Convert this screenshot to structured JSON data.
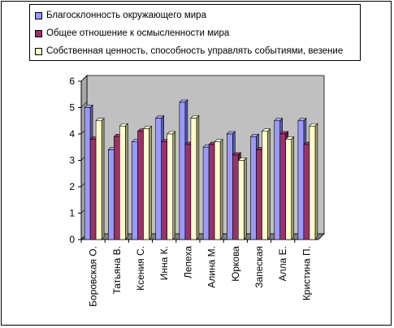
{
  "chart_data": {
    "type": "bar",
    "categories": [
      "Боровская О.",
      "Татьяна В.",
      "Ксения С.",
      "Инна К.",
      "Лепеха",
      "Алина М.",
      "Юркова",
      "Запеская",
      "Алла Е.",
      "Кристина П."
    ],
    "series": [
      {
        "name": "Благосклонность окружающего мира",
        "color": "#9999ff",
        "values": [
          5.0,
          3.4,
          3.7,
          4.6,
          5.2,
          3.5,
          4.0,
          3.9,
          4.5,
          4.5
        ]
      },
      {
        "name": "Общее отношение к осмысленности мира",
        "color": "#993366",
        "values": [
          3.8,
          3.9,
          4.1,
          3.7,
          3.6,
          3.6,
          3.2,
          3.4,
          4.0,
          3.6
        ]
      },
      {
        "name": "Собственная ценность, способность управлять событиями, везение",
        "color": "#ffffcc",
        "values": [
          4.5,
          4.3,
          4.2,
          4.0,
          4.6,
          3.7,
          3.0,
          4.1,
          3.8,
          4.3
        ]
      }
    ],
    "ylim": [
      0,
      6
    ],
    "yticks": [
      "0",
      "1",
      "2",
      "3",
      "4",
      "5",
      "6"
    ],
    "grid": false,
    "legend": "top",
    "wall_color": "#c0c0c0"
  }
}
